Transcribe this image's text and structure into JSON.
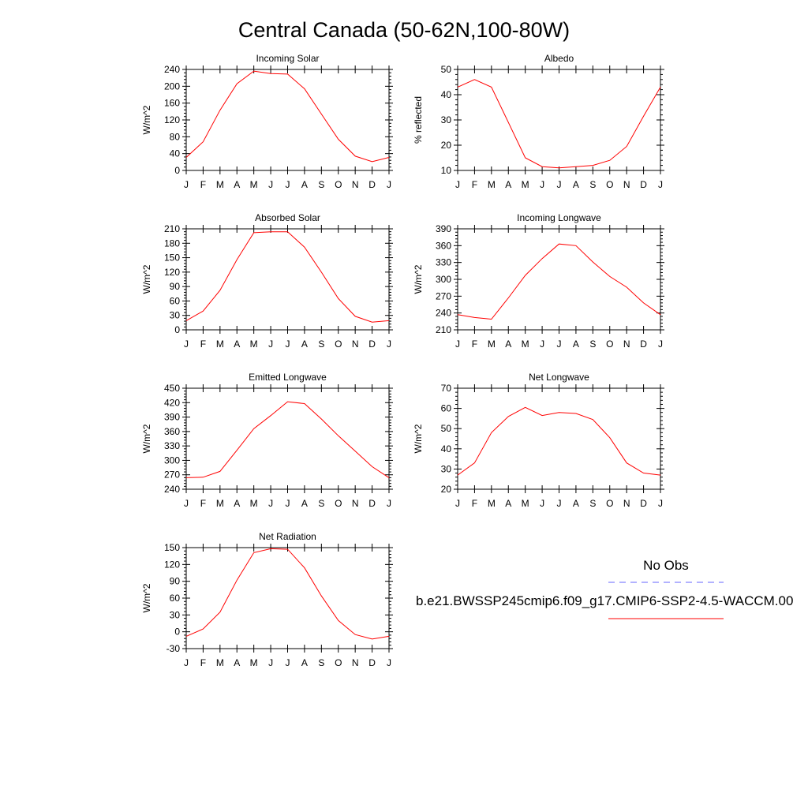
{
  "title": "Central Canada (50-62N,100-80W)",
  "month_labels": [
    "J",
    "F",
    "M",
    "A",
    "M",
    "J",
    "J",
    "A",
    "S",
    "O",
    "N",
    "D",
    "J"
  ],
  "legend": {
    "obs_label": "No Obs",
    "obs_color": "#6666ff",
    "model_label": "b.e21.BWSSP245cmip6.f09_g17.CMIP6-SSP2-4.5-WACCM.00",
    "model_color": "#ff0000"
  },
  "series_color": "#ff0000",
  "chart_data": [
    {
      "type": "line",
      "title": "Incoming Solar",
      "ylabel": "W/m^2",
      "ylim": [
        0,
        240
      ],
      "yticks": [
        0,
        40,
        80,
        120,
        160,
        200,
        240
      ],
      "x": [
        "J",
        "F",
        "M",
        "A",
        "M",
        "J",
        "J",
        "A",
        "S",
        "O",
        "N",
        "D",
        "J"
      ],
      "values": [
        31,
        68,
        143,
        206,
        236,
        230,
        229,
        194,
        134,
        74,
        34,
        21,
        31
      ]
    },
    {
      "type": "line",
      "title": "Albedo",
      "ylabel": "% reflected",
      "ylim": [
        10,
        50
      ],
      "yticks": [
        10,
        20,
        30,
        40,
        50
      ],
      "x": [
        "J",
        "F",
        "M",
        "A",
        "M",
        "J",
        "J",
        "A",
        "S",
        "O",
        "N",
        "D",
        "J"
      ],
      "values": [
        43,
        46,
        43,
        29,
        15,
        11.5,
        11,
        11.5,
        12,
        14,
        19.5,
        31.5,
        43
      ]
    },
    {
      "type": "line",
      "title": "Absorbed Solar",
      "ylabel": "W/m^2",
      "ylim": [
        0,
        210
      ],
      "yticks": [
        0,
        30,
        60,
        90,
        120,
        150,
        180,
        210
      ],
      "x": [
        "J",
        "F",
        "M",
        "A",
        "M",
        "J",
        "J",
        "A",
        "S",
        "O",
        "N",
        "D",
        "J"
      ],
      "values": [
        19,
        39,
        82,
        146,
        202,
        204,
        204,
        172,
        120,
        65,
        28,
        16,
        19
      ]
    },
    {
      "type": "line",
      "title": "Incoming Longwave",
      "ylabel": "W/m^2",
      "ylim": [
        210,
        390
      ],
      "yticks": [
        210,
        240,
        270,
        300,
        330,
        360,
        390
      ],
      "x": [
        "J",
        "F",
        "M",
        "A",
        "M",
        "J",
        "J",
        "A",
        "S",
        "O",
        "N",
        "D",
        "J"
      ],
      "values": [
        237,
        232,
        229,
        267,
        307,
        337,
        363,
        360,
        331,
        305,
        286,
        258,
        237
      ]
    },
    {
      "type": "line",
      "title": "Emitted Longwave",
      "ylabel": "W/m^2",
      "ylim": [
        240,
        450
      ],
      "yticks": [
        240,
        270,
        300,
        330,
        360,
        390,
        420,
        450
      ],
      "x": [
        "J",
        "F",
        "M",
        "A",
        "M",
        "J",
        "J",
        "A",
        "S",
        "O",
        "N",
        "D",
        "J"
      ],
      "values": [
        264,
        265,
        277,
        321,
        366,
        393,
        422,
        418,
        386,
        351,
        319,
        287,
        264
      ]
    },
    {
      "type": "line",
      "title": "Net Longwave",
      "ylabel": "W/m^2",
      "ylim": [
        20,
        70
      ],
      "yticks": [
        20,
        30,
        40,
        50,
        60,
        70
      ],
      "x": [
        "J",
        "F",
        "M",
        "A",
        "M",
        "J",
        "J",
        "A",
        "S",
        "O",
        "N",
        "D",
        "J"
      ],
      "values": [
        27,
        33,
        48,
        56,
        60.5,
        56.5,
        58,
        57.5,
        54.5,
        45.5,
        33,
        28,
        27
      ]
    },
    {
      "type": "line",
      "title": "Net Radiation",
      "ylabel": "W/m^2",
      "ylim": [
        -30,
        150
      ],
      "yticks": [
        -30,
        0,
        30,
        60,
        90,
        120,
        150
      ],
      "x": [
        "J",
        "F",
        "M",
        "A",
        "M",
        "J",
        "J",
        "A",
        "S",
        "O",
        "N",
        "D",
        "J"
      ],
      "values": [
        -8,
        5,
        35,
        92,
        141,
        148,
        147,
        114,
        64,
        20,
        -5,
        -13,
        -8
      ]
    }
  ]
}
